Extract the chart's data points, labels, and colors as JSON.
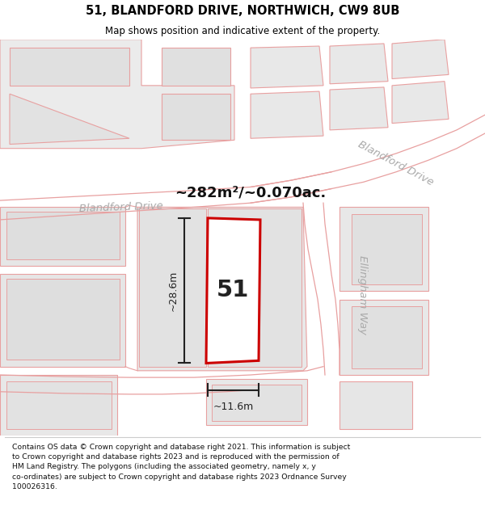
{
  "title": "51, BLANDFORD DRIVE, NORTHWICH, CW9 8UB",
  "subtitle": "Map shows position and indicative extent of the property.",
  "footer": "Contains OS data © Crown copyright and database right 2021. This information is subject to Crown copyright and database rights 2023 and is reproduced with the permission of HM Land Registry. The polygons (including the associated geometry, namely x, y co-ordinates) are subject to Crown copyright and database rights 2023 Ordnance Survey 100026316.",
  "bg_color": "#f5f5f5",
  "line_color": "#e8a0a0",
  "building_fill": "#e8e8e8",
  "building_edge": "#d0b0b0",
  "plot_color": "#cc0000",
  "dim_color": "#222222",
  "street_label_color": "#aaaaaa",
  "area_label": "~282m²/~0.070ac.",
  "plot_label": "51",
  "dim_width": "~11.6m",
  "dim_height": "~28.6m",
  "street_blandford_left": "Blandford Drive",
  "street_blandford_right": "Blandford Drive",
  "street_ellingham": "Ellingham Way"
}
